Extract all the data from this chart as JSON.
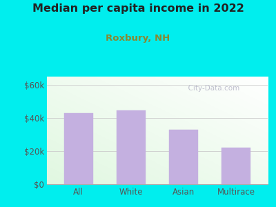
{
  "title": "Median per capita income in 2022",
  "subtitle": "Roxbury, NH",
  "categories": [
    "All",
    "White",
    "Asian",
    "Multirace"
  ],
  "values": [
    43000,
    44500,
    33000,
    22000
  ],
  "bar_color": "#c4b0e0",
  "bar_edgecolor": "#c4b0e0",
  "background_outer": "#00eeee",
  "title_color": "#222222",
  "subtitle_color": "#7a7a00",
  "tick_label_color": "#555555",
  "watermark_text": "City-Data.com",
  "ylim": [
    0,
    65000
  ],
  "yticks": [
    0,
    20000,
    40000,
    60000
  ],
  "ytick_labels": [
    "$0",
    "$20k",
    "$40k",
    "$60k"
  ]
}
